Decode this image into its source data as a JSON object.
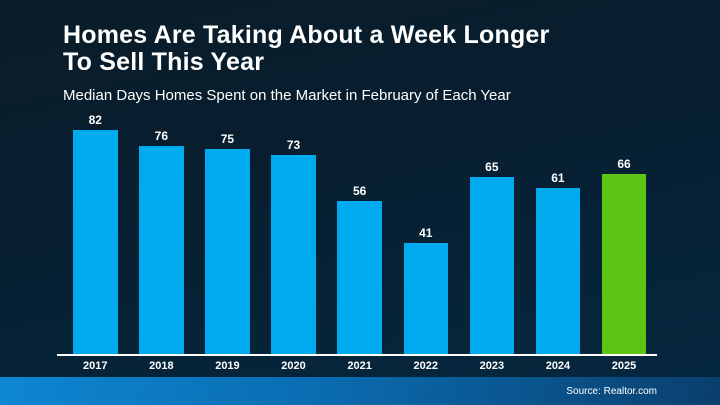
{
  "header": {
    "title_lines": [
      "Homes Are Taking About a Week Longer",
      "To Sell This Year"
    ],
    "subtitle": "Median Days Homes Spent on the Market in February of Each Year"
  },
  "chart_data": {
    "type": "bar",
    "title": "Homes Are Taking About a Week Longer To Sell This Year",
    "subtitle": "Median Days Homes Spent on the Market in February of Each Year",
    "categories": [
      "2017",
      "2018",
      "2019",
      "2020",
      "2021",
      "2022",
      "2023",
      "2024",
      "2025"
    ],
    "values": [
      82,
      76,
      75,
      73,
      56,
      41,
      65,
      61,
      66
    ],
    "value_labels_shown": true,
    "xlabel": "",
    "ylabel": "",
    "ylim": [
      0,
      90
    ],
    "grid": false,
    "legend": "none",
    "bar_color": "#00aaee",
    "highlight_index": 8,
    "highlight_color": "#5cc514",
    "value_label_color": "#ffffff",
    "axis_line_color": "#ffffff"
  },
  "footer": {
    "source": "Source: Realtor.com",
    "band_gradient": [
      "#0d87d2",
      "#0a6cb0",
      "#0a3f6e"
    ]
  },
  "colors": {
    "background_top": "#0a1c29",
    "background_bottom": "#052840",
    "text": "#ffffff"
  }
}
